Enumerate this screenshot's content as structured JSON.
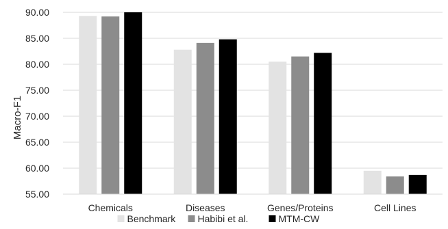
{
  "chart_data": {
    "type": "bar",
    "title": "",
    "xlabel": "",
    "ylabel": "Macro-F1",
    "ylim": [
      55,
      90
    ],
    "yticks": [
      "55.00",
      "60.00",
      "65.00",
      "70.00",
      "75.00",
      "80.00",
      "85.00",
      "90.00"
    ],
    "grid": true,
    "legend_position": "bottom",
    "categories": [
      "Chemicals",
      "Diseases",
      "Genes/Proteins",
      "Cell Lines"
    ],
    "series": [
      {
        "name": "Benchmark",
        "color": "#e3e3e3",
        "values": [
          89.3,
          82.8,
          80.5,
          59.5
        ]
      },
      {
        "name": "Habibi et al.",
        "color": "#8c8c8c",
        "values": [
          89.2,
          84.1,
          81.5,
          58.4
        ]
      },
      {
        "name": "MTM-CW",
        "color": "#000000",
        "values": [
          90.0,
          84.8,
          82.2,
          58.7
        ]
      }
    ]
  }
}
